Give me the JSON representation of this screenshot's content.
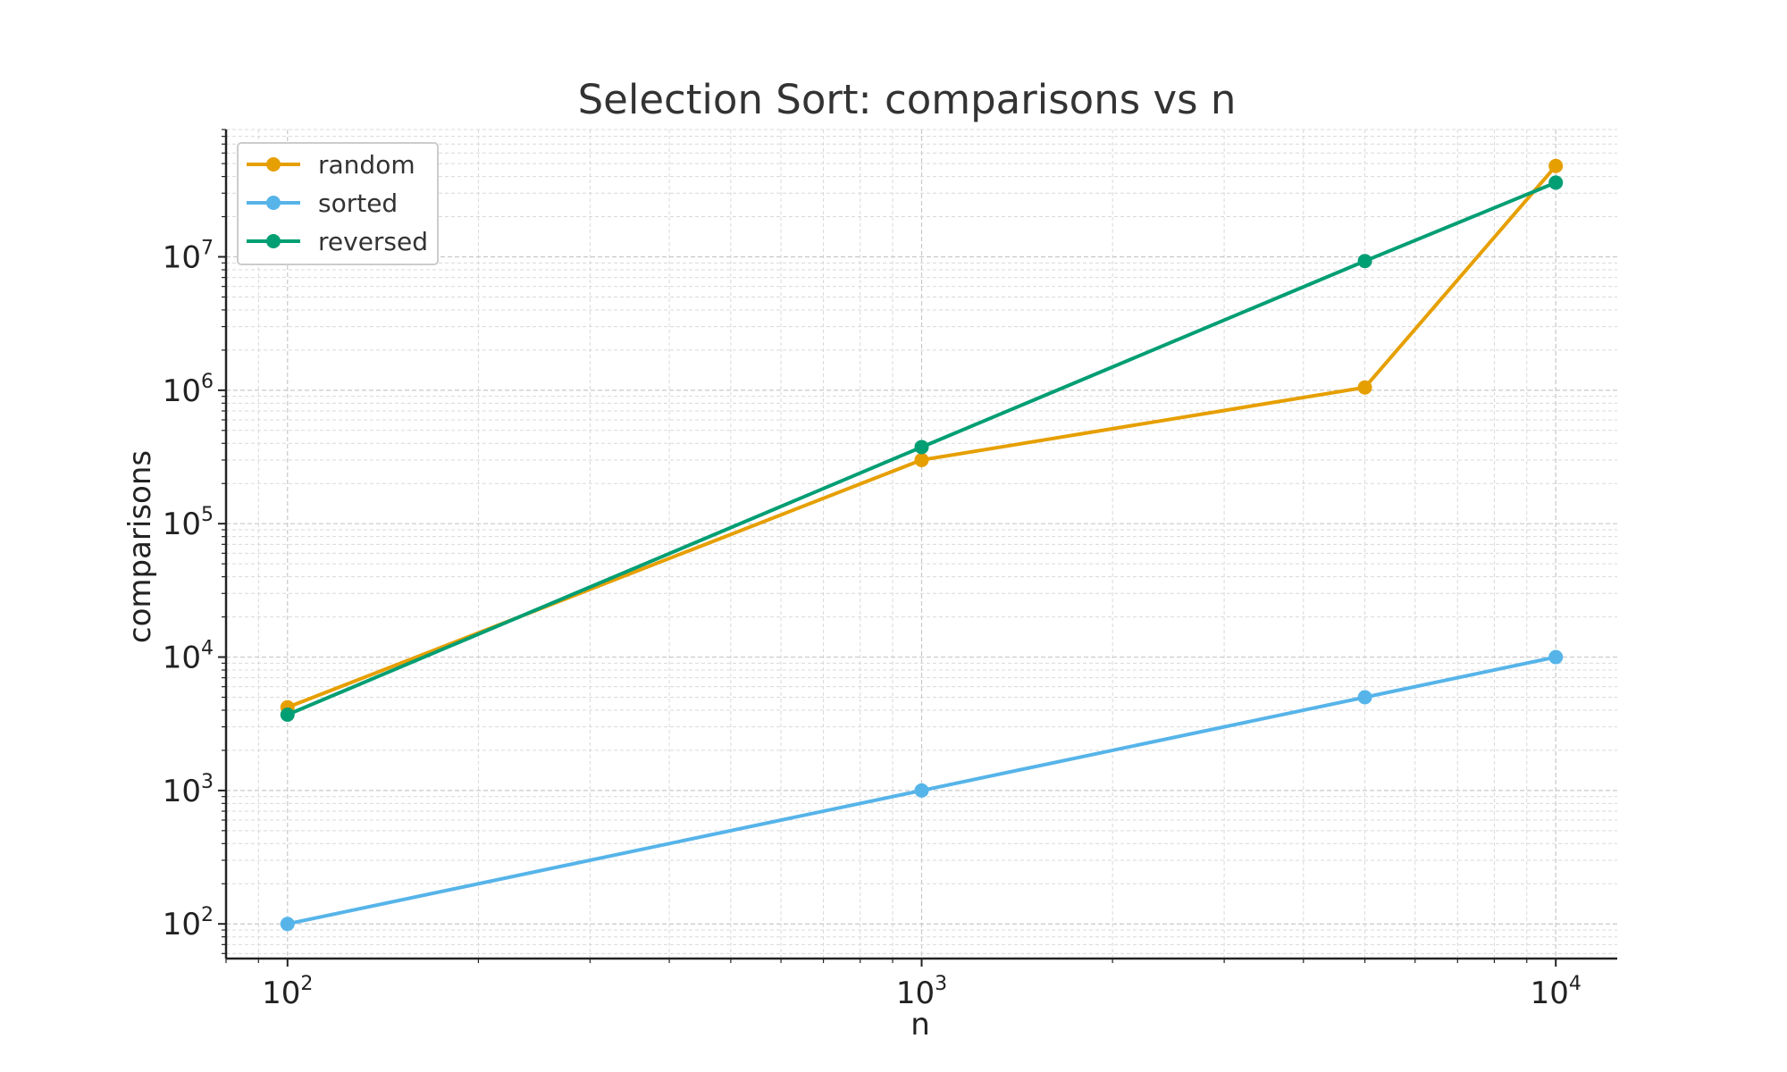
{
  "chart_data": {
    "type": "line",
    "title": "Selection Sort: comparisons vs n",
    "xlabel": "n",
    "ylabel": "comparisons",
    "xscale": "log",
    "yscale": "log",
    "xlim": [
      80,
      12500
    ],
    "ylim": [
      55,
      90000000
    ],
    "xticks": [
      {
        "value": 100,
        "base": "10",
        "exp": "2"
      },
      {
        "value": 1000,
        "base": "10",
        "exp": "3"
      },
      {
        "value": 10000,
        "base": "10",
        "exp": "4"
      }
    ],
    "yticks": [
      {
        "value": 100,
        "base": "10",
        "exp": "2"
      },
      {
        "value": 1000,
        "base": "10",
        "exp": "3"
      },
      {
        "value": 10000,
        "base": "10",
        "exp": "4"
      },
      {
        "value": 100000,
        "base": "10",
        "exp": "5"
      },
      {
        "value": 1000000,
        "base": "10",
        "exp": "6"
      },
      {
        "value": 10000000,
        "base": "10",
        "exp": "7"
      }
    ],
    "grid": true,
    "legend_position": "top-left",
    "x": [
      100,
      1000,
      5000,
      10000
    ],
    "series": [
      {
        "name": "random",
        "color": "#E69F00",
        "values": [
          4200,
          300000,
          1050000,
          48000000
        ]
      },
      {
        "name": "sorted",
        "color": "#56B4E9",
        "values": [
          100,
          1000,
          5000,
          10000
        ]
      },
      {
        "name": "reversed",
        "color": "#009E73",
        "values": [
          3700,
          375000,
          9300000,
          36000000
        ]
      }
    ]
  }
}
